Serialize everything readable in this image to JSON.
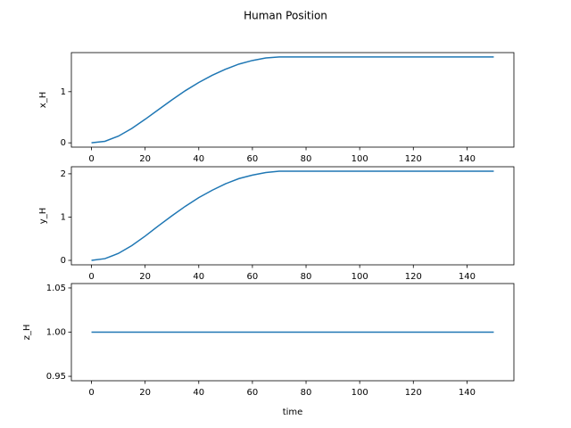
{
  "title": "Human Position",
  "chart_data": [
    {
      "type": "line",
      "ylabel": "x_H",
      "x": [
        0,
        5,
        10,
        15,
        20,
        25,
        30,
        35,
        40,
        45,
        50,
        55,
        60,
        65,
        70,
        75,
        80,
        85,
        90,
        95,
        100,
        105,
        110,
        115,
        120,
        125,
        130,
        135,
        140,
        145,
        150
      ],
      "series": [
        {
          "color": "#1f77b4",
          "values": [
            0,
            0.03,
            0.13,
            0.28,
            0.46,
            0.65,
            0.84,
            1.02,
            1.18,
            1.32,
            1.44,
            1.54,
            1.61,
            1.66,
            1.68,
            1.68,
            1.68,
            1.68,
            1.68,
            1.68,
            1.68,
            1.68,
            1.68,
            1.68,
            1.68,
            1.68,
            1.68,
            1.68,
            1.68,
            1.68,
            1.68
          ]
        }
      ],
      "xlim": [
        -7.5,
        157.5
      ],
      "xticks": [
        0,
        20,
        40,
        60,
        80,
        100,
        120,
        140
      ],
      "ylim": [
        -0.084,
        1.764
      ],
      "yticks": [
        0,
        1
      ]
    },
    {
      "type": "line",
      "ylabel": "y_H",
      "x": [
        0,
        5,
        10,
        15,
        20,
        25,
        30,
        35,
        40,
        45,
        50,
        55,
        60,
        65,
        70,
        75,
        80,
        85,
        90,
        95,
        100,
        105,
        110,
        115,
        120,
        125,
        130,
        135,
        140,
        145,
        150
      ],
      "series": [
        {
          "color": "#1f77b4",
          "values": [
            0,
            0.04,
            0.16,
            0.34,
            0.56,
            0.8,
            1.03,
            1.25,
            1.45,
            1.62,
            1.77,
            1.89,
            1.97,
            2.03,
            2.06,
            2.06,
            2.06,
            2.06,
            2.06,
            2.06,
            2.06,
            2.06,
            2.06,
            2.06,
            2.06,
            2.06,
            2.06,
            2.06,
            2.06,
            2.06,
            2.06
          ]
        }
      ],
      "xlim": [
        -7.5,
        157.5
      ],
      "xticks": [
        0,
        20,
        40,
        60,
        80,
        100,
        120,
        140
      ],
      "ylim": [
        -0.103,
        2.163
      ],
      "yticks": [
        0,
        1,
        2
      ]
    },
    {
      "type": "line",
      "ylabel": "z_H",
      "xlabel": "time",
      "x": [
        0,
        150
      ],
      "series": [
        {
          "color": "#1f77b4",
          "values": [
            1,
            1
          ]
        }
      ],
      "xlim": [
        -7.5,
        157.5
      ],
      "xticks": [
        0,
        20,
        40,
        60,
        80,
        100,
        120,
        140
      ],
      "ylim": [
        0.945,
        1.055
      ],
      "yticks": [
        {
          "value": 0.95,
          "label": "0.95"
        },
        {
          "value": 1.0,
          "label": "1.00"
        },
        {
          "value": 1.05,
          "label": "1.05"
        }
      ]
    }
  ]
}
